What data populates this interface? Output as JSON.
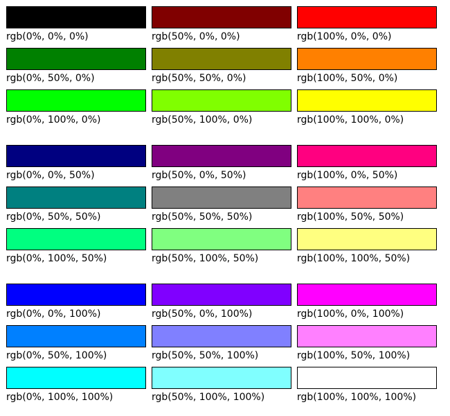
{
  "groups": [
    {
      "swatches": [
        {
          "label": "rgb(0%, 0%, 0%)",
          "color": "#000000"
        },
        {
          "label": "rgb(50%, 0%, 0%)",
          "color": "#800000"
        },
        {
          "label": "rgb(100%, 0%, 0%)",
          "color": "#ff0000"
        },
        {
          "label": "rgb(0%, 50%, 0%)",
          "color": "#008000"
        },
        {
          "label": "rgb(50%, 50%, 0%)",
          "color": "#808000"
        },
        {
          "label": "rgb(100%, 50%, 0%)",
          "color": "#ff8000"
        },
        {
          "label": "rgb(0%, 100%, 0%)",
          "color": "#00ff00"
        },
        {
          "label": "rgb(50%, 100%, 0%)",
          "color": "#80ff00"
        },
        {
          "label": "rgb(100%, 100%, 0%)",
          "color": "#ffff00"
        }
      ]
    },
    {
      "swatches": [
        {
          "label": "rgb(0%, 0%, 50%)",
          "color": "#000080"
        },
        {
          "label": "rgb(50%, 0%, 50%)",
          "color": "#800080"
        },
        {
          "label": "rgb(100%, 0%, 50%)",
          "color": "#ff0080"
        },
        {
          "label": "rgb(0%, 50%, 50%)",
          "color": "#008080"
        },
        {
          "label": "rgb(50%, 50%, 50%)",
          "color": "#808080"
        },
        {
          "label": "rgb(100%, 50%, 50%)",
          "color": "#ff8080"
        },
        {
          "label": "rgb(0%, 100%, 50%)",
          "color": "#00ff80"
        },
        {
          "label": "rgb(50%, 100%, 50%)",
          "color": "#80ff80"
        },
        {
          "label": "rgb(100%, 100%, 50%)",
          "color": "#ffff80"
        }
      ]
    },
    {
      "swatches": [
        {
          "label": "rgb(0%, 0%, 100%)",
          "color": "#0000ff"
        },
        {
          "label": "rgb(50%, 0%, 100%)",
          "color": "#8000ff"
        },
        {
          "label": "rgb(100%, 0%, 100%)",
          "color": "#ff00ff"
        },
        {
          "label": "rgb(0%, 50%, 100%)",
          "color": "#0080ff"
        },
        {
          "label": "rgb(50%, 50%, 100%)",
          "color": "#8080ff"
        },
        {
          "label": "rgb(100%, 50%, 100%)",
          "color": "#ff80ff"
        },
        {
          "label": "rgb(0%, 100%, 100%)",
          "color": "#00ffff"
        },
        {
          "label": "rgb(50%, 100%, 100%)",
          "color": "#80ffff"
        },
        {
          "label": "rgb(100%, 100%, 100%)",
          "color": "#ffffff"
        }
      ]
    }
  ]
}
